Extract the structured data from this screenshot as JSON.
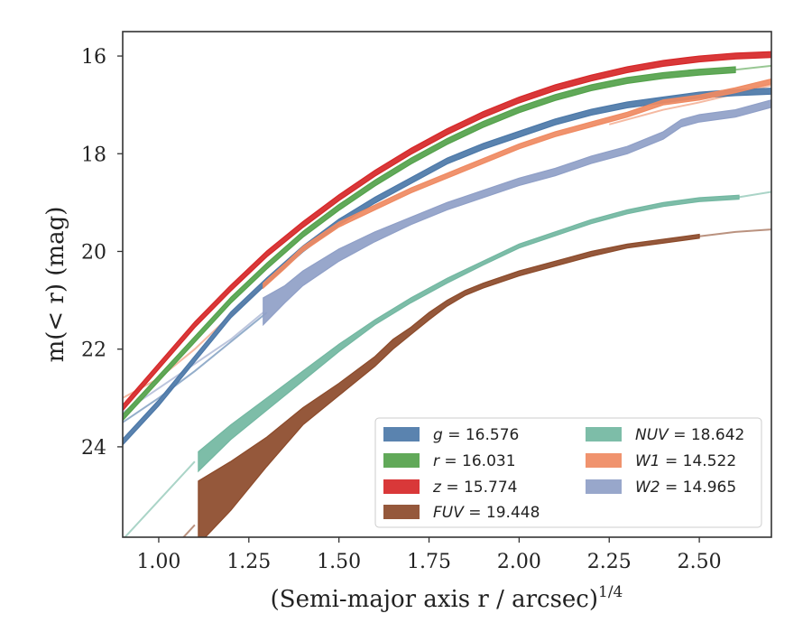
{
  "chart_data": {
    "type": "line",
    "xlabel": "(Semi-major axis r / arcsec)",
    "xlabel_sup": "1/4",
    "ylabel": "m(< r) (mag)",
    "xlim": [
      0.9,
      2.7
    ],
    "ylim": [
      25.85,
      15.5
    ],
    "y_inverted": true,
    "grid": false,
    "legend_placement": "lower-right",
    "x_ticks": [
      "1.00",
      "1.25",
      "1.50",
      "1.75",
      "2.00",
      "2.25",
      "2.50"
    ],
    "x_tick_values": [
      1.0,
      1.25,
      1.5,
      1.75,
      2.0,
      2.25,
      2.5
    ],
    "y_ticks": [
      "16",
      "18",
      "20",
      "22",
      "24"
    ],
    "y_tick_values": [
      16,
      18,
      20,
      22,
      24
    ],
    "series": [
      {
        "name": "g = 16.576",
        "label_var": "g",
        "label_val": "16.576",
        "italic_var": true,
        "color": "#4c78a8",
        "band_halfwidth": 0.06,
        "data": [
          [
            0.9,
            23.9
          ],
          [
            1.0,
            23.1
          ],
          [
            1.1,
            22.2
          ],
          [
            1.2,
            21.3
          ],
          [
            1.3,
            20.6
          ],
          [
            1.4,
            19.95
          ],
          [
            1.5,
            19.4
          ],
          [
            1.6,
            18.95
          ],
          [
            1.7,
            18.55
          ],
          [
            1.8,
            18.15
          ],
          [
            1.9,
            17.85
          ],
          [
            2.0,
            17.6
          ],
          [
            2.1,
            17.35
          ],
          [
            2.2,
            17.15
          ],
          [
            2.3,
            17.0
          ],
          [
            2.4,
            16.9
          ],
          [
            2.5,
            16.8
          ],
          [
            2.6,
            16.75
          ],
          [
            2.7,
            16.72
          ]
        ],
        "model": [
          [
            0.9,
            23.5
          ],
          [
            1.0,
            23.0
          ],
          [
            1.1,
            22.45
          ],
          [
            1.2,
            21.85
          ],
          [
            1.3,
            21.25
          ]
        ]
      },
      {
        "name": "r = 16.031",
        "label_var": "r",
        "label_val": "16.031",
        "italic_var": true,
        "color": "#54a24b",
        "band_halfwidth": 0.06,
        "data": [
          [
            0.9,
            23.4
          ],
          [
            1.0,
            22.6
          ],
          [
            1.1,
            21.8
          ],
          [
            1.2,
            21.0
          ],
          [
            1.3,
            20.3
          ],
          [
            1.4,
            19.65
          ],
          [
            1.5,
            19.1
          ],
          [
            1.6,
            18.6
          ],
          [
            1.7,
            18.15
          ],
          [
            1.8,
            17.75
          ],
          [
            1.9,
            17.4
          ],
          [
            2.0,
            17.1
          ],
          [
            2.1,
            16.85
          ],
          [
            2.2,
            16.65
          ],
          [
            2.3,
            16.5
          ],
          [
            2.4,
            16.4
          ],
          [
            2.5,
            16.33
          ],
          [
            2.6,
            16.28
          ]
        ],
        "model": [
          [
            2.6,
            16.28
          ],
          [
            2.7,
            16.2
          ]
        ]
      },
      {
        "name": "z = 15.774",
        "label_var": "z",
        "label_val": "15.774",
        "italic_var": true,
        "color": "#d62728",
        "band_halfwidth": 0.06,
        "data": [
          [
            0.9,
            23.2
          ],
          [
            1.0,
            22.35
          ],
          [
            1.1,
            21.5
          ],
          [
            1.2,
            20.75
          ],
          [
            1.3,
            20.05
          ],
          [
            1.4,
            19.45
          ],
          [
            1.5,
            18.9
          ],
          [
            1.6,
            18.4
          ],
          [
            1.7,
            17.95
          ],
          [
            1.8,
            17.55
          ],
          [
            1.9,
            17.2
          ],
          [
            2.0,
            16.9
          ],
          [
            2.1,
            16.65
          ],
          [
            2.2,
            16.45
          ],
          [
            2.3,
            16.28
          ],
          [
            2.4,
            16.15
          ],
          [
            2.5,
            16.06
          ],
          [
            2.6,
            16.0
          ],
          [
            2.7,
            15.97
          ]
        ],
        "model": []
      },
      {
        "name": "FUV = 19.448",
        "label_var": "FUV",
        "label_val": "19.448",
        "italic_var": true,
        "color": "#8c4a2a",
        "band_halfwidth": null,
        "band": [
          [
            1.11,
            24.7,
            26.0
          ],
          [
            1.2,
            24.3,
            25.3
          ],
          [
            1.3,
            23.8,
            24.4
          ],
          [
            1.4,
            23.2,
            23.55
          ],
          [
            1.5,
            22.7,
            22.95
          ],
          [
            1.6,
            22.15,
            22.35
          ],
          [
            1.65,
            21.8,
            22.0
          ],
          [
            1.7,
            21.55,
            21.7
          ],
          [
            1.75,
            21.25,
            21.4
          ],
          [
            1.8,
            21.0,
            21.12
          ],
          [
            1.85,
            20.8,
            20.9
          ],
          [
            1.9,
            20.65,
            20.75
          ],
          [
            2.0,
            20.4,
            20.5
          ],
          [
            2.1,
            20.2,
            20.3
          ],
          [
            2.2,
            20.0,
            20.1
          ],
          [
            2.3,
            19.85,
            19.93
          ],
          [
            2.4,
            19.75,
            19.83
          ],
          [
            2.5,
            19.65,
            19.73
          ]
        ],
        "model": [
          [
            1.05,
            26.0
          ],
          [
            1.1,
            25.6
          ],
          [
            2.5,
            19.69
          ],
          [
            2.6,
            19.6
          ],
          [
            2.7,
            19.55
          ]
        ]
      },
      {
        "name": "NUV = 18.642",
        "label_var": "NUV",
        "label_val": "18.642",
        "italic_var": true,
        "color": "#72b7a1",
        "band_halfwidth": null,
        "band": [
          [
            1.11,
            24.1,
            24.5
          ],
          [
            1.2,
            23.55,
            23.85
          ],
          [
            1.3,
            23.0,
            23.25
          ],
          [
            1.4,
            22.45,
            22.65
          ],
          [
            1.5,
            21.9,
            22.05
          ],
          [
            1.6,
            21.4,
            21.5
          ],
          [
            1.7,
            20.95,
            21.05
          ],
          [
            1.8,
            20.55,
            20.65
          ],
          [
            1.9,
            20.2,
            20.28
          ],
          [
            2.0,
            19.85,
            19.93
          ],
          [
            2.1,
            19.6,
            19.68
          ],
          [
            2.2,
            19.35,
            19.43
          ],
          [
            2.3,
            19.15,
            19.23
          ],
          [
            2.4,
            19.0,
            19.08
          ],
          [
            2.5,
            18.9,
            18.98
          ],
          [
            2.61,
            18.85,
            18.93
          ]
        ],
        "model": [
          [
            0.9,
            25.9
          ],
          [
            1.0,
            25.1
          ],
          [
            1.1,
            24.3
          ],
          [
            2.61,
            18.89
          ],
          [
            2.7,
            18.78
          ]
        ]
      },
      {
        "name": "W1 = 14.522",
        "label_var": "W1",
        "label_val": "14.522",
        "italic_var": true,
        "color": "#ef8a62",
        "band_halfwidth": 0.05,
        "data": [
          [
            1.29,
            20.7
          ],
          [
            1.35,
            20.3
          ],
          [
            1.4,
            19.95
          ],
          [
            1.5,
            19.45
          ],
          [
            1.6,
            19.1
          ],
          [
            1.7,
            18.75
          ],
          [
            1.8,
            18.45
          ],
          [
            1.9,
            18.15
          ],
          [
            2.0,
            17.85
          ],
          [
            2.1,
            17.6
          ],
          [
            2.2,
            17.4
          ],
          [
            2.3,
            17.2
          ],
          [
            2.4,
            16.95
          ],
          [
            2.5,
            16.85
          ],
          [
            2.6,
            16.7
          ],
          [
            2.7,
            16.52
          ]
        ],
        "model": [
          [
            0.9,
            23.0
          ],
          [
            1.0,
            22.6
          ],
          [
            1.1,
            22.0
          ],
          [
            1.2,
            21.3
          ],
          [
            1.29,
            20.7
          ],
          [
            2.25,
            17.4
          ],
          [
            2.4,
            17.1
          ],
          [
            2.5,
            16.95
          ],
          [
            2.7,
            16.6
          ]
        ]
      },
      {
        "name": "W2 = 14.965",
        "label_var": "W2",
        "label_val": "14.965",
        "italic_var": true,
        "color": "#8f9fc7",
        "band_halfwidth": null,
        "band": [
          [
            1.29,
            20.95,
            21.5
          ],
          [
            1.35,
            20.7,
            21.05
          ],
          [
            1.4,
            20.4,
            20.7
          ],
          [
            1.5,
            19.95,
            20.2
          ],
          [
            1.6,
            19.6,
            19.8
          ],
          [
            1.7,
            19.3,
            19.45
          ],
          [
            1.8,
            19.0,
            19.15
          ],
          [
            1.9,
            18.75,
            18.9
          ],
          [
            2.0,
            18.5,
            18.65
          ],
          [
            2.1,
            18.3,
            18.45
          ],
          [
            2.2,
            18.05,
            18.2
          ],
          [
            2.3,
            17.85,
            18.0
          ],
          [
            2.4,
            17.55,
            17.7
          ],
          [
            2.45,
            17.3,
            17.45
          ],
          [
            2.5,
            17.2,
            17.35
          ],
          [
            2.6,
            17.1,
            17.25
          ],
          [
            2.7,
            16.9,
            17.05
          ]
        ],
        "model": [
          [
            0.9,
            23.3
          ],
          [
            1.0,
            22.8
          ],
          [
            1.1,
            22.3
          ],
          [
            1.2,
            21.8
          ],
          [
            1.29,
            21.25
          ]
        ]
      }
    ],
    "legend_columns": [
      [
        "g = 16.576",
        "r = 16.031",
        "z = 15.774",
        "FUV = 19.448"
      ],
      [
        "NUV = 18.642",
        "W1 = 14.522",
        "W2 = 14.965"
      ]
    ]
  }
}
